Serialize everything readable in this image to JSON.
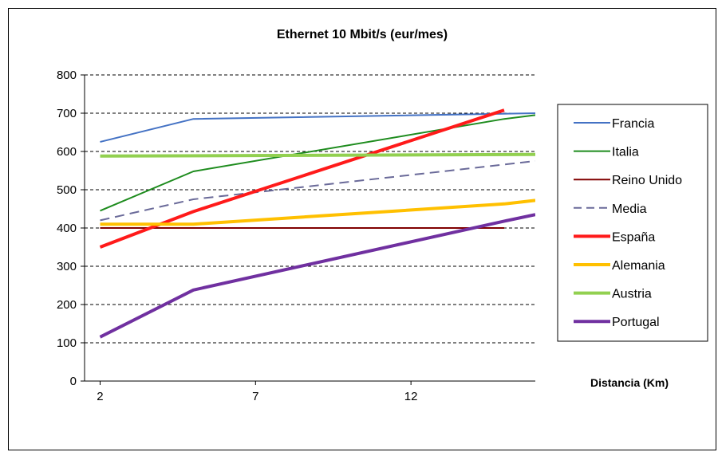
{
  "chart_data": {
    "type": "line",
    "title": "Ethernet 10 Mbit/s (eur/mes)",
    "xlabel": "Distancia (Km)",
    "ylabel": "",
    "xlim": [
      1.5,
      16.0
    ],
    "ylim": [
      0,
      800
    ],
    "xticks": [
      2,
      7,
      12
    ],
    "yticks": [
      0,
      100,
      200,
      300,
      400,
      500,
      600,
      700,
      800
    ],
    "grid": "horizontal dashed",
    "legend_position": "right",
    "series": [
      {
        "name": "Francia",
        "color": "#4472C4",
        "width": 2,
        "dash": "",
        "x": [
          2,
          5,
          16
        ],
        "y": [
          625,
          685,
          700
        ]
      },
      {
        "name": "Italia",
        "color": "#1E8C1E",
        "width": 2,
        "dash": "",
        "x": [
          2,
          5,
          15,
          16
        ],
        "y": [
          445,
          548,
          685,
          695
        ]
      },
      {
        "name": "Reino Unido",
        "color": "#800000",
        "width": 2,
        "dash": "",
        "x": [
          2,
          15
        ],
        "y": [
          400,
          400
        ]
      },
      {
        "name": "Media",
        "color": "#6A6A99",
        "width": 2,
        "dash": "12,7",
        "x": [
          2,
          5,
          16
        ],
        "y": [
          420,
          475,
          575
        ]
      },
      {
        "name": "España",
        "color": "#FF1A1A",
        "width": 4,
        "dash": "",
        "x": [
          2,
          5,
          15
        ],
        "y": [
          350,
          443,
          708
        ]
      },
      {
        "name": "Alemania",
        "color": "#FFC000",
        "width": 4,
        "dash": "",
        "x": [
          2,
          5,
          15,
          16
        ],
        "y": [
          410,
          410,
          463,
          472
        ]
      },
      {
        "name": "Austria",
        "color": "#92D050",
        "width": 4,
        "dash": "",
        "x": [
          2,
          16
        ],
        "y": [
          588,
          592
        ]
      },
      {
        "name": "Portugal",
        "color": "#7030A0",
        "width": 4,
        "dash": "",
        "x": [
          2,
          5,
          15,
          16
        ],
        "y": [
          115,
          238,
          418,
          435
        ]
      }
    ]
  }
}
